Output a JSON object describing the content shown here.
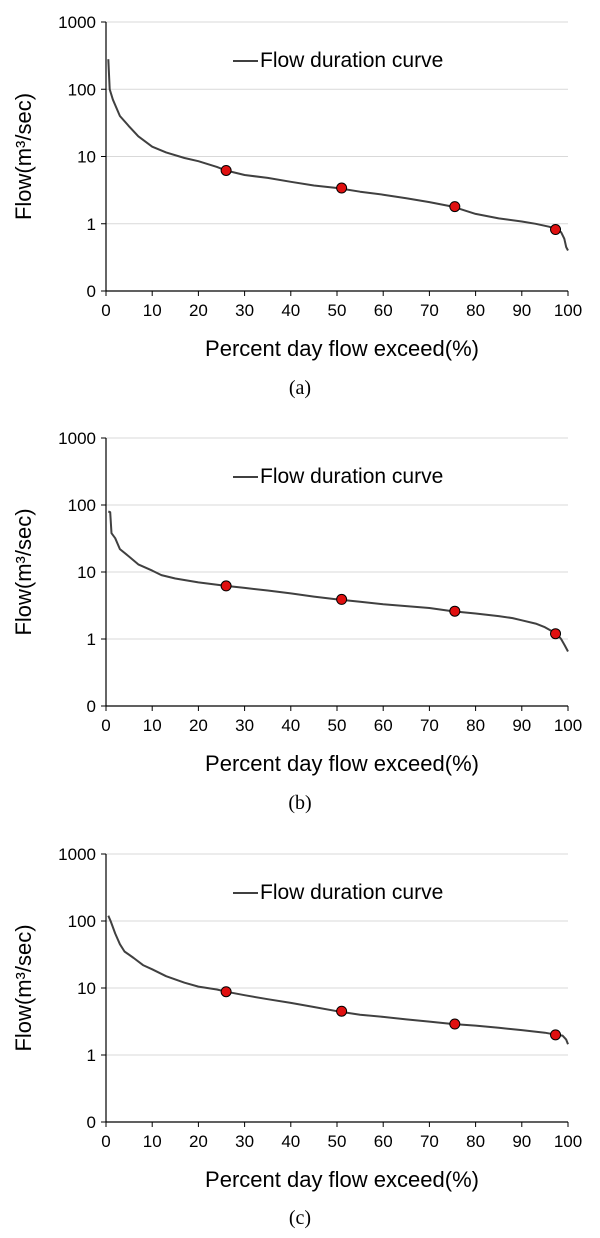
{
  "chart_data": [
    {
      "type": "line",
      "caption": "(a)",
      "xlabel": "Percent day flow exceed(%)",
      "ylabel": "Flow(m³/sec)",
      "xlim": [
        0,
        100
      ],
      "ylim": [
        0.1,
        1000
      ],
      "yscale": "log",
      "x_ticks": [
        0,
        10,
        20,
        30,
        40,
        50,
        60,
        70,
        80,
        90,
        100
      ],
      "y_ticks": [
        {
          "value": 0.1,
          "label": "0"
        },
        {
          "value": 1,
          "label": "1"
        },
        {
          "value": 10,
          "label": "10"
        },
        {
          "value": 100,
          "label": "100"
        },
        {
          "value": 1000,
          "label": "1000"
        }
      ],
      "grid": "horizontal",
      "legend": "top-right",
      "series": [
        {
          "name": "Flow duration curve",
          "color": "#404040",
          "x": [
            0.5,
            0.8,
            1.5,
            3,
            5,
            7,
            10,
            13,
            17,
            20,
            24,
            26,
            30,
            35,
            40,
            45,
            50,
            55,
            60,
            65,
            70,
            75,
            80,
            85,
            90,
            93,
            96,
            97.5,
            98.5,
            99.2,
            99.6,
            100
          ],
          "y": [
            280,
            100,
            70,
            40,
            28,
            20,
            14,
            11.5,
            9.5,
            8.5,
            7,
            6.2,
            5.3,
            4.8,
            4.2,
            3.7,
            3.4,
            3.0,
            2.7,
            2.4,
            2.1,
            1.8,
            1.4,
            1.2,
            1.08,
            1.0,
            0.9,
            0.82,
            0.75,
            0.6,
            0.45,
            0.4
          ]
        }
      ],
      "markers": {
        "color": "#e01010",
        "points": [
          {
            "x": 26,
            "y": 6.2
          },
          {
            "x": 51,
            "y": 3.4
          },
          {
            "x": 75.5,
            "y": 1.8
          },
          {
            "x": 97.3,
            "y": 0.82
          }
        ]
      }
    },
    {
      "type": "line",
      "caption": "(b)",
      "xlabel": "Percent day flow exceed(%)",
      "ylabel": "Flow(m³/sec)",
      "xlim": [
        0,
        100
      ],
      "ylim": [
        0.1,
        1000
      ],
      "yscale": "log",
      "x_ticks": [
        0,
        10,
        20,
        30,
        40,
        50,
        60,
        70,
        80,
        90,
        100
      ],
      "y_ticks": [
        {
          "value": 0.1,
          "label": "0"
        },
        {
          "value": 1,
          "label": "1"
        },
        {
          "value": 10,
          "label": "10"
        },
        {
          "value": 100,
          "label": "100"
        },
        {
          "value": 1000,
          "label": "1000"
        }
      ],
      "grid": "horizontal",
      "legend": "top-right",
      "series": [
        {
          "name": "Flow duration curve",
          "color": "#404040",
          "x": [
            0.5,
            0.9,
            1.2,
            2,
            3,
            5,
            7,
            10,
            12,
            15,
            20,
            26,
            30,
            35,
            40,
            45,
            50,
            55,
            60,
            65,
            70,
            75,
            80,
            85,
            88,
            90,
            93,
            95,
            97.5,
            98.5,
            99.3,
            100
          ],
          "y": [
            80,
            78,
            38,
            32,
            22,
            17,
            13,
            10.5,
            9,
            8,
            7,
            6.2,
            5.8,
            5.3,
            4.8,
            4.3,
            3.9,
            3.6,
            3.3,
            3.1,
            2.9,
            2.6,
            2.4,
            2.2,
            2.05,
            1.9,
            1.7,
            1.5,
            1.2,
            1.0,
            0.8,
            0.65
          ]
        }
      ],
      "markers": {
        "color": "#e01010",
        "points": [
          {
            "x": 26,
            "y": 6.2
          },
          {
            "x": 51,
            "y": 3.9
          },
          {
            "x": 75.5,
            "y": 2.6
          },
          {
            "x": 97.3,
            "y": 1.2
          }
        ]
      }
    },
    {
      "type": "line",
      "caption": "(c)",
      "xlabel": "Percent day flow exceed(%)",
      "ylabel": "Flow(m³/sec)",
      "xlim": [
        0,
        100
      ],
      "ylim": [
        0.1,
        1000
      ],
      "yscale": "log",
      "x_ticks": [
        0,
        10,
        20,
        30,
        40,
        50,
        60,
        70,
        80,
        90,
        100
      ],
      "y_ticks": [
        {
          "value": 0.1,
          "label": "0"
        },
        {
          "value": 1,
          "label": "1"
        },
        {
          "value": 10,
          "label": "10"
        },
        {
          "value": 100,
          "label": "100"
        },
        {
          "value": 1000,
          "label": "1000"
        }
      ],
      "grid": "horizontal",
      "legend": "top-right",
      "series": [
        {
          "name": "Flow duration curve",
          "color": "#404040",
          "x": [
            0.5,
            1,
            2,
            3,
            4,
            6,
            8,
            10,
            13,
            17,
            20,
            24,
            26,
            30,
            35,
            40,
            45,
            50,
            55,
            60,
            65,
            70,
            75,
            80,
            85,
            90,
            95,
            97.5,
            98.8,
            99.6,
            100
          ],
          "y": [
            120,
            100,
            65,
            45,
            35,
            28,
            22,
            19,
            15,
            12,
            10.5,
            9.5,
            8.8,
            7.8,
            6.8,
            6.0,
            5.2,
            4.5,
            4.0,
            3.7,
            3.4,
            3.15,
            2.9,
            2.75,
            2.55,
            2.35,
            2.15,
            2.0,
            1.95,
            1.7,
            1.45
          ]
        }
      ],
      "markers": {
        "color": "#e01010",
        "points": [
          {
            "x": 26,
            "y": 8.8
          },
          {
            "x": 51,
            "y": 4.5
          },
          {
            "x": 75.5,
            "y": 2.9
          },
          {
            "x": 97.3,
            "y": 2.0
          }
        ]
      }
    }
  ]
}
